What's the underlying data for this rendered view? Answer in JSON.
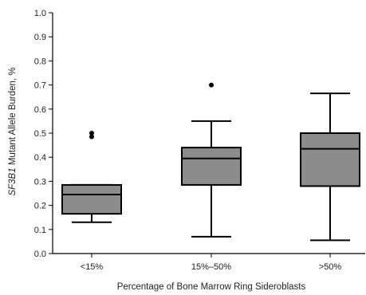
{
  "chart_data": {
    "type": "box",
    "title": "",
    "xlabel": "Percentage of Bone Marrow Ring Sideroblasts",
    "ylabel_italic": "SF3B1",
    "ylabel_rest": " Mutant Allele Burden, %",
    "ylim": [
      0,
      1.0
    ],
    "yticks": [
      "0.0",
      "0.1",
      "0.2",
      "0.3",
      "0.4",
      "0.5",
      "0.6",
      "0.7",
      "0.8",
      "0.9",
      "1.0"
    ],
    "grid": false,
    "categories": [
      "<15%",
      "15%–50%",
      ">50%"
    ],
    "boxes": [
      {
        "label": "<15%",
        "whisker_low": 0.13,
        "q1": 0.165,
        "median": 0.245,
        "q3": 0.285,
        "whisker_high": 0.285,
        "outliers": [
          0.5,
          0.485
        ]
      },
      {
        "label": "15%–50%",
        "whisker_low": 0.07,
        "q1": 0.285,
        "median": 0.395,
        "q3": 0.44,
        "whisker_high": 0.55,
        "outliers": [
          0.7
        ]
      },
      {
        "label": ">50%",
        "whisker_low": 0.055,
        "q1": 0.28,
        "median": 0.435,
        "q3": 0.5,
        "whisker_high": 0.665,
        "outliers": []
      }
    ],
    "box_color": "#8c8c8c"
  }
}
